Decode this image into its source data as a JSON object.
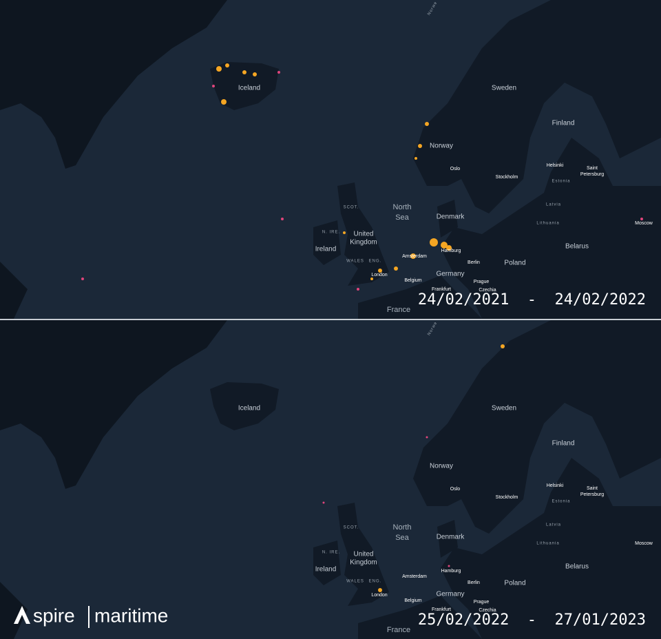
{
  "panels": [
    {
      "date_range": "24/02/2021  -  24/02/2022",
      "labels": [
        "Norwe",
        "Iceland",
        "Sweden",
        "Finland",
        "Norway",
        "Oslo",
        "Helsinki",
        "Saint",
        "Petersburg",
        "Stockholm",
        "Estonia",
        "Latvia",
        "Lithuania",
        "Moscow",
        "North",
        "Sea",
        "Denmark",
        "SCOT.",
        "N. IRE.",
        "United",
        "Kingdom",
        "Ireland",
        "Belarus",
        "WALES",
        "ENG.",
        "Amsterdam",
        "Hamburg",
        "Berlin",
        "Poland",
        "London",
        "Germany",
        "Belgium",
        "Frankfurt",
        "Prague",
        "Czechia",
        "France"
      ]
    },
    {
      "date_range": "25/02/2022  -  27/01/2023",
      "labels": [
        "Norwe",
        "Iceland",
        "Sweden",
        "Finland",
        "Norway",
        "Oslo",
        "Helsinki",
        "Saint",
        "Petersburg",
        "Stockholm",
        "Estonia",
        "Latvia",
        "Lithuania",
        "Moscow",
        "North",
        "Sea",
        "Denmark",
        "SCOT.",
        "N. IRE.",
        "United",
        "Kingdom",
        "Ireland",
        "Belarus",
        "WALES",
        "ENG.",
        "Amsterdam",
        "Hamburg",
        "Berlin",
        "Poland",
        "London",
        "Germany",
        "Belgium",
        "Frankfurt",
        "Prague",
        "Czechia",
        "France"
      ]
    }
  ],
  "logo": {
    "brand": "spire",
    "product": "maritime"
  }
}
